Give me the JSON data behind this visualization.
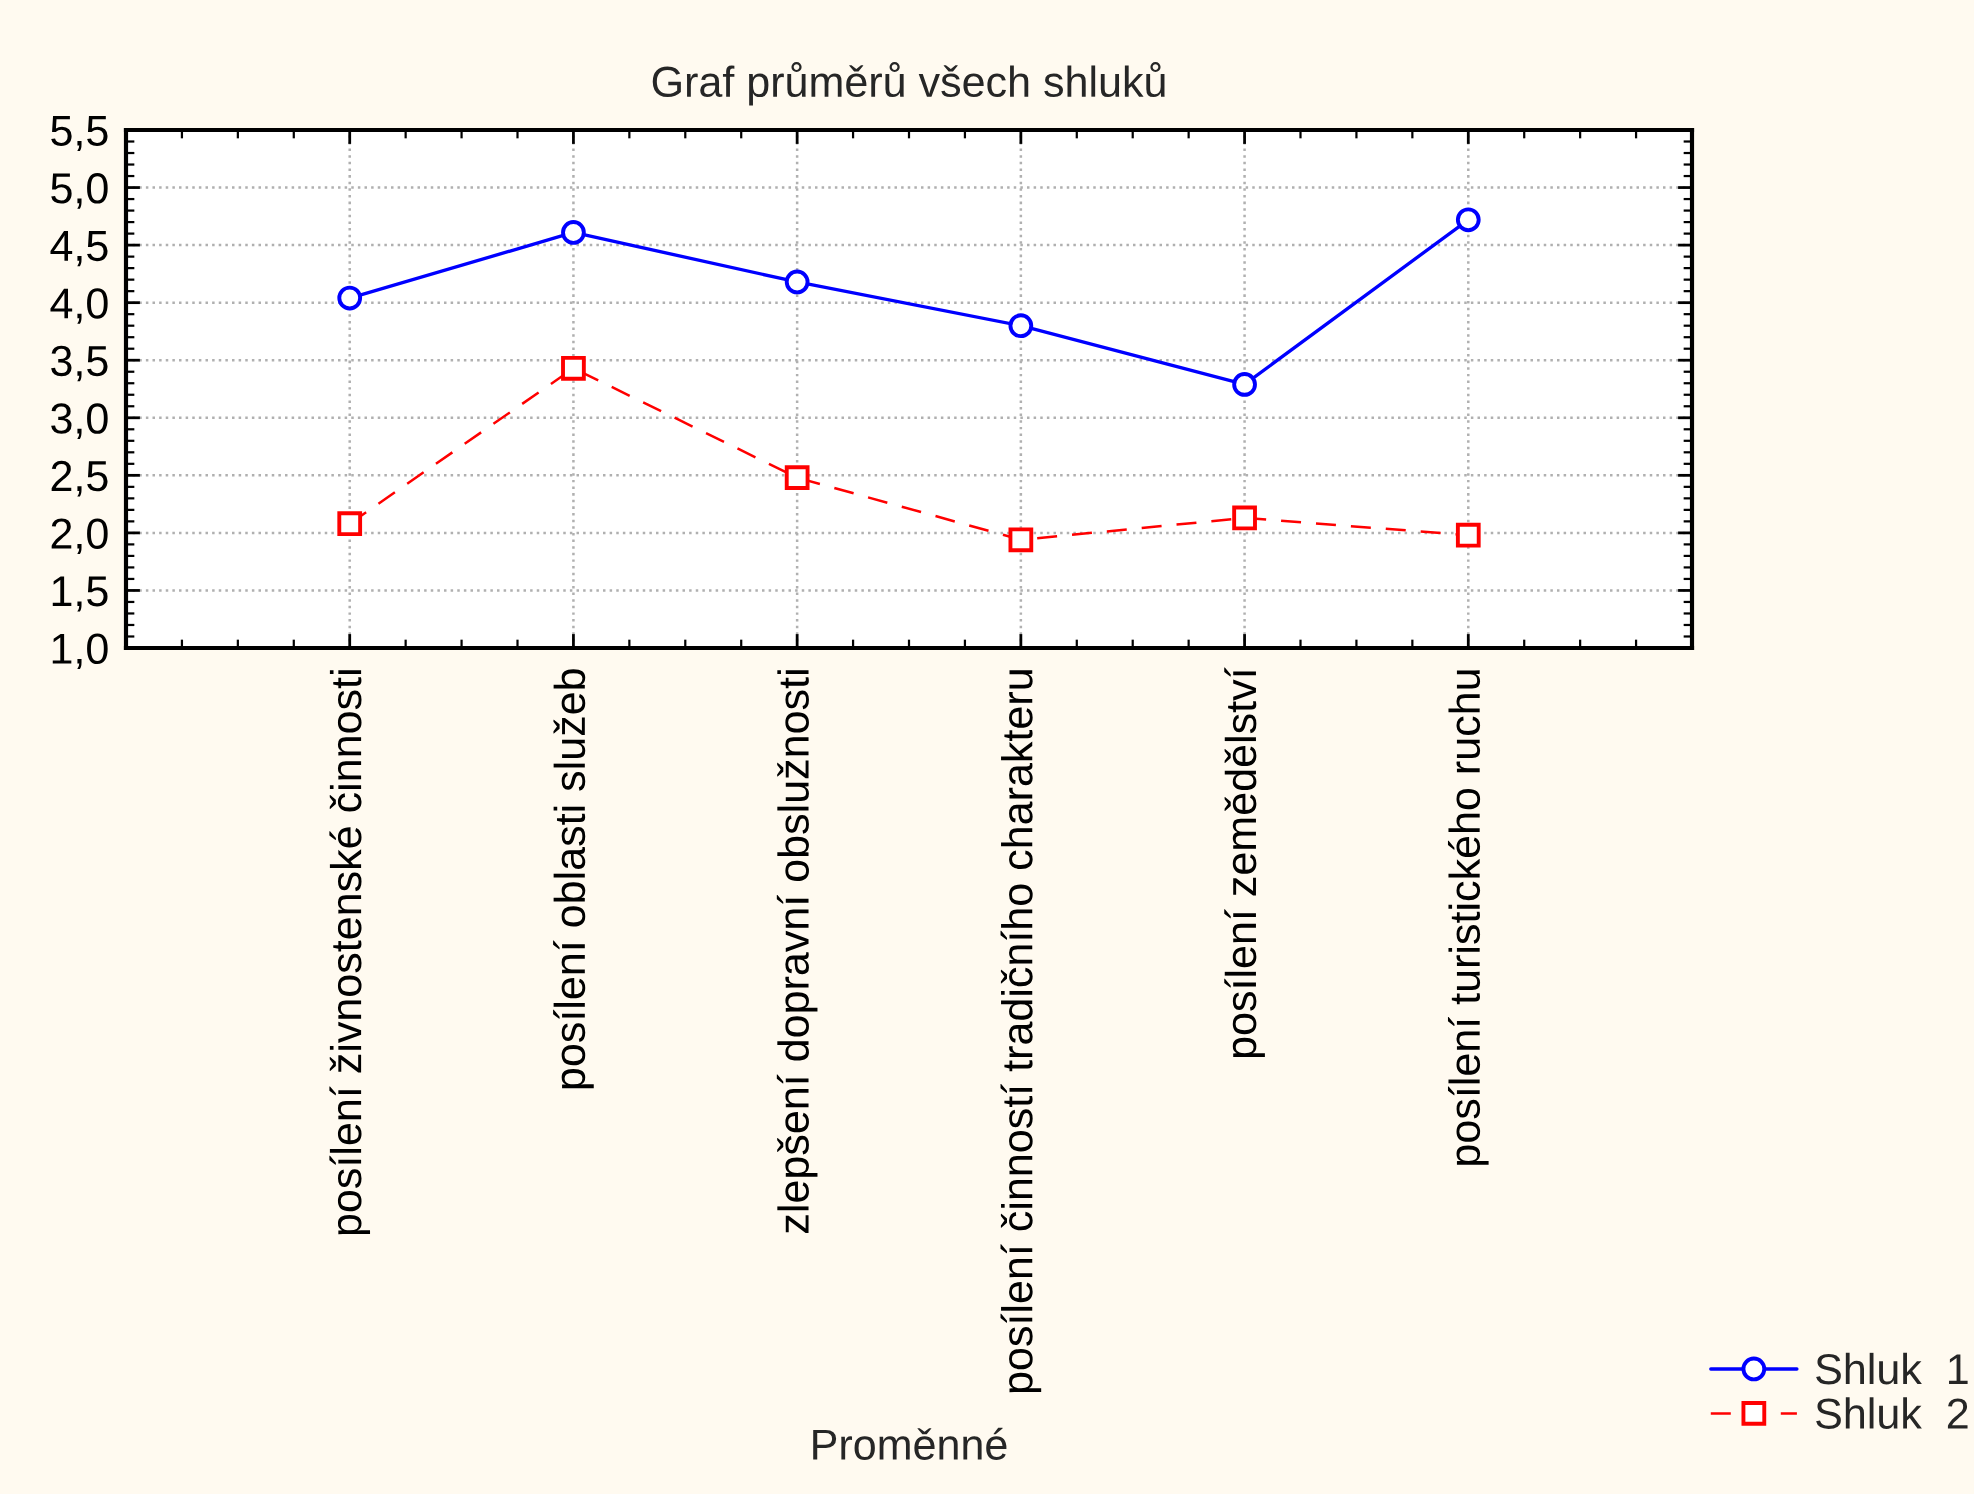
{
  "chart_data": {
    "type": "line",
    "title": "Graf průměrů všech shluků",
    "xlabel": "Proměnné",
    "categories": [
      "posílení živnostenské činnosti",
      "posílení oblasti služeb",
      "zlepšení dopravní obslužnosti",
      "posílení činností tradičního charakteru",
      "posílení zemědělství",
      "posílení turistického ruchu"
    ],
    "series": [
      {
        "name": "Shluk  1",
        "color": "#0000ff",
        "marker": "circle",
        "line_style": "solid",
        "values": [
          4.04,
          4.61,
          4.18,
          3.8,
          3.29,
          4.72
        ]
      },
      {
        "name": "Shluk  2",
        "color": "#ff0000",
        "marker": "square",
        "line_style": "dashed",
        "values": [
          2.08,
          3.43,
          2.48,
          1.94,
          2.13,
          1.98
        ]
      }
    ],
    "ylim": [
      1.0,
      5.5
    ],
    "yticks": [
      {
        "value": 1.0,
        "label": "1,0"
      },
      {
        "value": 1.5,
        "label": "1,5"
      },
      {
        "value": 2.0,
        "label": "2,0"
      },
      {
        "value": 2.5,
        "label": "2,5"
      },
      {
        "value": 3.0,
        "label": "3,0"
      },
      {
        "value": 3.5,
        "label": "3,5"
      },
      {
        "value": 4.0,
        "label": "4,0"
      },
      {
        "value": 4.5,
        "label": "4,5"
      },
      {
        "value": 5.0,
        "label": "5,0"
      },
      {
        "value": 5.5,
        "label": "5,5"
      }
    ],
    "grid": true,
    "legend": "bottom right"
  }
}
